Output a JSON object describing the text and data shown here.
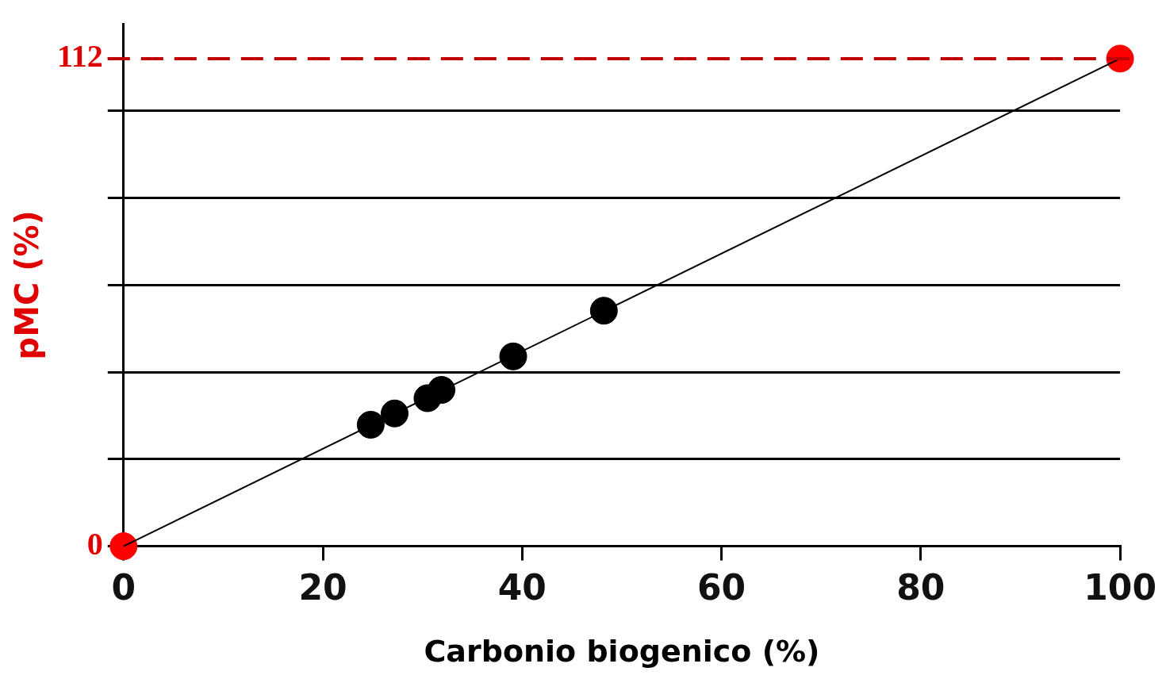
{
  "chart_data": {
    "type": "scatter",
    "xlabel": "Carbonio biogenico (%)",
    "ylabel": "pMC (%)",
    "xlim": [
      0,
      100
    ],
    "xticks": [
      0,
      20,
      40,
      60,
      80,
      100
    ],
    "ylim": [
      0,
      120
    ],
    "yticks": [
      0,
      {
        "value": 20,
        "label": null
      },
      {
        "value": 40,
        "label": null
      },
      {
        "value": 60,
        "label": null
      },
      {
        "value": 80,
        "label": null
      },
      {
        "value": 100,
        "label": null
      },
      112
    ],
    "grid": "y",
    "legend": false,
    "marker": "circle",
    "series": [
      {
        "type": "line",
        "color": "#000000",
        "x": [
          0,
          100
        ],
        "values": [
          0,
          112
        ],
        "marker": "none"
      },
      {
        "type": "scatter",
        "color": "#000000",
        "x": [
          24.8,
          27.2,
          30.5,
          31.9,
          39.1,
          48.2
        ],
        "values": [
          27.9,
          30.5,
          34,
          35.9,
          43.6,
          54.1
        ]
      },
      {
        "type": "scatter",
        "color": "#ff0000",
        "x": [
          0,
          100
        ],
        "values": [
          0,
          112
        ]
      }
    ],
    "ref_lines": [
      {
        "axis": "y",
        "value": 112,
        "color": "#c00000",
        "line_style": "dashed"
      }
    ]
  }
}
